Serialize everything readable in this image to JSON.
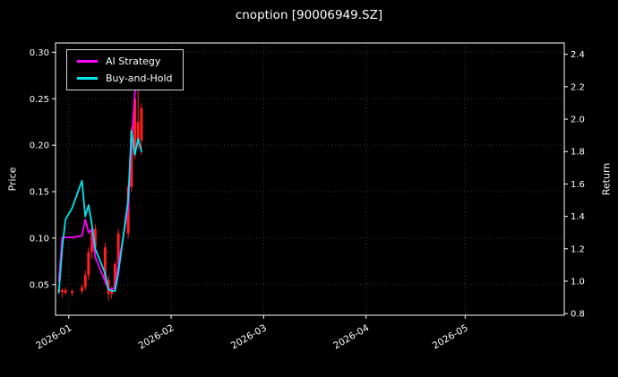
{
  "chart_data": {
    "type": "mixed",
    "title": "cnoption [90006949.SZ]",
    "background": "#000000",
    "text_color": "#ffffff",
    "grid_color": "#3a3a3a",
    "left_axis": {
      "label": "Price",
      "ticks": [
        0.05,
        0.1,
        0.15,
        0.2,
        0.25,
        0.3
      ],
      "range": [
        0.017,
        0.31
      ]
    },
    "right_axis": {
      "label": "Return",
      "ticks": [
        0.8,
        1.0,
        1.2,
        1.4,
        1.6,
        1.8,
        2.0,
        2.2,
        2.4
      ],
      "range": [
        0.79,
        2.47
      ]
    },
    "x_axis": {
      "tick_labels": [
        "2026-01",
        "2026-02",
        "2026-03",
        "2026-04",
        "2026-05"
      ],
      "range": [
        "2025-12-28",
        "2026-05-31"
      ]
    },
    "legend": [
      {
        "label": "AI Strategy",
        "color": "#ff00ff"
      },
      {
        "label": "Buy-and-Hold",
        "color": "#00e5ee"
      }
    ],
    "candlestick": {
      "axis": "left",
      "color": "#ff1f1f",
      "data": [
        [
          "2025-12-29",
          0.045,
          0.048,
          0.04,
          0.042
        ],
        [
          "2025-12-30",
          0.042,
          0.046,
          0.036,
          0.044
        ],
        [
          "2025-12-31",
          0.044,
          0.047,
          0.039,
          0.041
        ],
        [
          "2026-01-02",
          0.041,
          0.045,
          0.037,
          0.043
        ],
        [
          "2026-01-05",
          0.043,
          0.05,
          0.04,
          0.047
        ],
        [
          "2026-01-06",
          0.047,
          0.065,
          0.044,
          0.06
        ],
        [
          "2026-01-07",
          0.06,
          0.09,
          0.055,
          0.085
        ],
        [
          "2026-01-08",
          0.085,
          0.12,
          0.078,
          0.11
        ],
        [
          "2026-01-09",
          0.11,
          0.115,
          0.085,
          0.09
        ],
        [
          "2026-01-12",
          0.09,
          0.095,
          0.05,
          0.055
        ],
        [
          "2026-01-13",
          0.055,
          0.06,
          0.033,
          0.04
        ],
        [
          "2026-01-14",
          0.04,
          0.048,
          0.035,
          0.045
        ],
        [
          "2026-01-15",
          0.045,
          0.075,
          0.043,
          0.072
        ],
        [
          "2026-01-16",
          0.072,
          0.11,
          0.07,
          0.105
        ],
        [
          "2026-01-19",
          0.105,
          0.16,
          0.1,
          0.155
        ],
        [
          "2026-01-20",
          0.155,
          0.22,
          0.15,
          0.215
        ],
        [
          "2026-01-21",
          0.19,
          0.255,
          0.185,
          0.25
        ],
        [
          "2026-01-22",
          0.225,
          0.26,
          0.195,
          0.205
        ],
        [
          "2026-01-23",
          0.205,
          0.245,
          0.19,
          0.24
        ]
      ]
    },
    "series": [
      {
        "name": "AI Strategy",
        "axis": "right",
        "color": "#ff00ff",
        "points": [
          [
            "2025-12-29",
            1.0
          ],
          [
            "2025-12-30",
            1.27
          ],
          [
            "2025-12-31",
            1.27
          ],
          [
            "2026-01-02",
            1.27
          ],
          [
            "2026-01-05",
            1.28
          ],
          [
            "2026-01-06",
            1.38
          ],
          [
            "2026-01-07",
            1.3
          ],
          [
            "2026-01-08",
            1.32
          ],
          [
            "2026-01-09",
            1.15
          ],
          [
            "2026-01-12",
            1.0
          ],
          [
            "2026-01-13",
            0.95
          ],
          [
            "2026-01-14",
            0.95
          ],
          [
            "2026-01-15",
            0.96
          ],
          [
            "2026-01-16",
            1.1
          ],
          [
            "2026-01-19",
            1.45
          ],
          [
            "2026-01-20",
            1.85
          ],
          [
            "2026-01-21",
            2.15
          ],
          [
            "2026-01-22",
            2.42
          ],
          [
            "2026-01-23",
            2.2
          ]
        ]
      },
      {
        "name": "Buy-and-Hold",
        "axis": "right",
        "color": "#00e5ee",
        "points": [
          [
            "2025-12-29",
            0.93
          ],
          [
            "2025-12-30",
            1.2
          ],
          [
            "2025-12-31",
            1.38
          ],
          [
            "2026-01-02",
            1.45
          ],
          [
            "2026-01-05",
            1.62
          ],
          [
            "2026-01-06",
            1.4
          ],
          [
            "2026-01-07",
            1.47
          ],
          [
            "2026-01-08",
            1.35
          ],
          [
            "2026-01-09",
            1.2
          ],
          [
            "2026-01-12",
            1.05
          ],
          [
            "2026-01-13",
            0.95
          ],
          [
            "2026-01-14",
            0.94
          ],
          [
            "2026-01-15",
            0.94
          ],
          [
            "2026-01-16",
            1.05
          ],
          [
            "2026-01-19",
            1.5
          ],
          [
            "2026-01-20",
            1.93
          ],
          [
            "2026-01-21",
            1.78
          ],
          [
            "2026-01-22",
            1.88
          ],
          [
            "2026-01-23",
            1.8
          ]
        ]
      }
    ]
  }
}
